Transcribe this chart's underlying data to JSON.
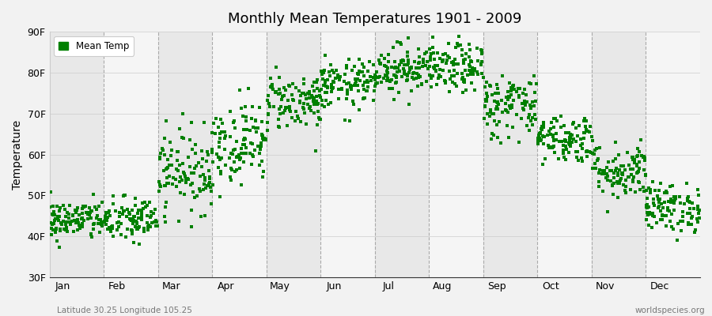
{
  "title": "Monthly Mean Temperatures 1901 - 2009",
  "ylabel": "Temperature",
  "xlabel_bottom_left": "Latitude 30.25 Longitude 105.25",
  "xlabel_bottom_right": "worldspecies.org",
  "yticks": [
    30,
    40,
    50,
    60,
    70,
    80,
    90
  ],
  "ytick_labels": [
    "30F",
    "40F",
    "50F",
    "60F",
    "70F",
    "80F",
    "90F"
  ],
  "ylim": [
    30,
    90
  ],
  "months": [
    "Jan",
    "Feb",
    "Mar",
    "Apr",
    "May",
    "Jun",
    "Jul",
    "Aug",
    "Sep",
    "Oct",
    "Nov",
    "Dec"
  ],
  "dot_color": "#008000",
  "background_color": "#f2f2f2",
  "band_colors": [
    "#e8e8e8",
    "#f5f5f5"
  ],
  "legend_label": "Mean Temp",
  "month_means": [
    44,
    44,
    56,
    63,
    73,
    77,
    81,
    81,
    72,
    64,
    56,
    47
  ],
  "month_stds": [
    2.5,
    2.8,
    5.0,
    5.0,
    3.5,
    3.0,
    3.0,
    3.0,
    4.0,
    3.0,
    3.5,
    3.0
  ],
  "n_years": 109,
  "seed": 42
}
